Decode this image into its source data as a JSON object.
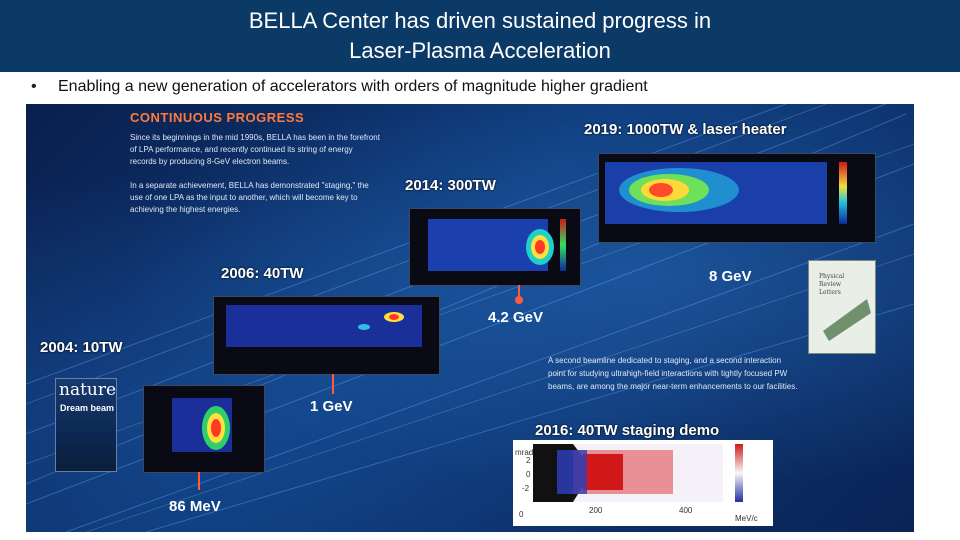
{
  "slide": {
    "title_line1": "BELLA Center has driven sustained progress in",
    "title_line2": "Laser-Plasma Acceleration",
    "bullet_marker": "•",
    "bullet_text": "Enabling a new generation of accelerators with orders of magnitude higher gradient"
  },
  "poster": {
    "heading": "CONTINUOUS PROGRESS",
    "para1": "Since its beginnings in the mid 1990s, BELLA has been in the forefront of LPA performance, and recently continued its string of energy records by producing 8-GeV electron beams.",
    "para2": "In a separate achievement, BELLA has demonstrated \"staging,\" the use of one LPA as the input to another, which will become key to achieving the highest energies.",
    "para3": "A second beamline dedicated to staging, and a second interaction point for studying ultrahigh-field interactions with tightly focused PW beams, are among the major near-term enhancements to our facilities.",
    "milestones": {
      "m2019": "2019: 1000TW & laser heater",
      "m2014": "2014: 300TW",
      "m2006": "2006: 40TW",
      "m2004": "2004: 10TW",
      "m2016": "2016: 40TW staging demo"
    },
    "energies": {
      "e8": "8 GeV",
      "e4": "4.2 GeV",
      "e1": "1 GeV",
      "e86": "86 MeV"
    },
    "cover_nature": {
      "logo": "nature",
      "subtitle": "Dream beam"
    },
    "cover_prl": {
      "line1": "Physical",
      "line2": "Review",
      "line3": "Letters"
    },
    "staging_plot": {
      "ylabel": "mrad",
      "yticks": [
        "2",
        "0",
        "-2"
      ],
      "xticks": [
        "0",
        "200",
        "400"
      ],
      "xunit": "MeV/c"
    },
    "colors": {
      "title_bar": "#0b3a66",
      "accent_orange": "#ff7a3c",
      "pin_red": "#ff5a3c"
    }
  }
}
